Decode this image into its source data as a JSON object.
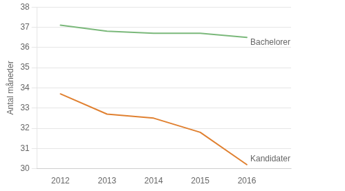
{
  "chart_data": {
    "type": "line",
    "ylabel": "Antal måneder",
    "x": [
      2012,
      2013,
      2014,
      2015,
      2016
    ],
    "series": [
      {
        "name": "Bachelorer",
        "color": "#7ab87a",
        "values": [
          37.1,
          36.8,
          36.7,
          36.7,
          36.5
        ]
      },
      {
        "name": "Kandidater",
        "color": "#e08030",
        "values": [
          33.7,
          32.7,
          32.5,
          31.8,
          30.2
        ]
      }
    ],
    "xlim": [
      2011.5,
      2016.95
    ],
    "xticks": [
      2012,
      2013,
      2014,
      2015,
      2016
    ],
    "ylim": [
      30,
      38
    ],
    "yticks": [
      30,
      31,
      32,
      33,
      34,
      35,
      36,
      37,
      38
    ],
    "grid": true
  }
}
